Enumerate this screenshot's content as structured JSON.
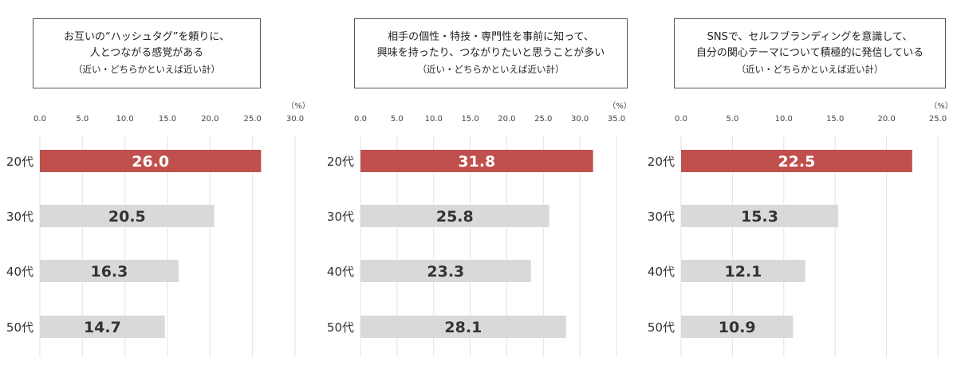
{
  "colors": {
    "highlight": "#c0504d",
    "bar": "#d9d9d9",
    "grid": "#e3e3e3",
    "value_on_highlight": "#ffffff",
    "value_on_bar": "#333333"
  },
  "unit_label": "（%）",
  "chart_data": [
    {
      "type": "bar",
      "orientation": "horizontal",
      "title_lines": [
        "お互いの“ハッシュタグ”を頼りに、",
        "人とつながる感覚がある"
      ],
      "note": "（近い・どちらかといえば近い計）",
      "categories": [
        "20代",
        "30代",
        "40代",
        "50代"
      ],
      "values": [
        26.0,
        20.5,
        16.3,
        14.7
      ],
      "value_labels": [
        "26.0",
        "20.5",
        "16.3",
        "14.7"
      ],
      "highlight_index": 0,
      "xlim": [
        0,
        30
      ],
      "ticks": [
        "0.0",
        "5.0",
        "10.0",
        "15.0",
        "20.0",
        "25.0",
        "30.0"
      ],
      "grid": true
    },
    {
      "type": "bar",
      "orientation": "horizontal",
      "title_lines": [
        "相手の個性・特技・専門性を事前に知って、",
        "興味を持ったり、つながりたいと思うことが多い"
      ],
      "note": "（近い・どちらかといえば近い計）",
      "categories": [
        "20代",
        "30代",
        "40代",
        "50代"
      ],
      "values": [
        31.8,
        25.8,
        23.3,
        28.1
      ],
      "value_labels": [
        "31.8",
        "25.8",
        "23.3",
        "28.1"
      ],
      "highlight_index": 0,
      "xlim": [
        0,
        35
      ],
      "ticks": [
        "0.0",
        "5.0",
        "10.0",
        "15.0",
        "20.0",
        "25.0",
        "30.0",
        "35.0"
      ],
      "grid": true
    },
    {
      "type": "bar",
      "orientation": "horizontal",
      "title_lines": [
        "SNSで、セルフブランディングを意識して、",
        "自分の関心テーマについて積極的に発信している"
      ],
      "note": "（近い・どちらかといえば近い計）",
      "categories": [
        "20代",
        "30代",
        "40代",
        "50代"
      ],
      "values": [
        22.5,
        15.3,
        12.1,
        10.9
      ],
      "value_labels": [
        "22.5",
        "15.3",
        "12.1",
        "10.9"
      ],
      "highlight_index": 0,
      "xlim": [
        0,
        25
      ],
      "ticks": [
        "0.0",
        "5.0",
        "10.0",
        "15.0",
        "20.0",
        "25.0"
      ],
      "grid": true
    }
  ]
}
